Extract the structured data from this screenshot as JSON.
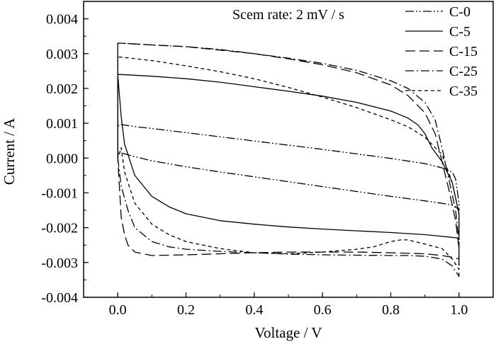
{
  "chart_data": {
    "type": "line",
    "xlabel": "Voltage / V",
    "ylabel": "Current / A",
    "annotation": "Scem rate: 2 mV / s",
    "xlim": [
      -0.1,
      1.1
    ],
    "ylim": [
      -0.004,
      0.0045
    ],
    "x_ticks": [
      0.0,
      0.2,
      0.4,
      0.6,
      0.8,
      1.0
    ],
    "x_tick_labels": [
      "0.0",
      "0.2",
      "0.4",
      "0.6",
      "0.8",
      "1.0"
    ],
    "y_ticks": [
      -0.004,
      -0.003,
      -0.002,
      -0.001,
      0.0,
      0.001,
      0.002,
      0.003,
      0.004
    ],
    "y_tick_labels": [
      "-0.004",
      "-0.003",
      "-0.002",
      "-0.001",
      "0.000",
      "0.001",
      "0.002",
      "0.003",
      "0.004"
    ],
    "grid": false,
    "legend_position": "top-right",
    "series": [
      {
        "name": "C-0",
        "dash": "dashdotdot",
        "x": [
          0.0,
          0.0,
          0.005,
          0.02,
          0.05,
          0.1,
          0.2,
          0.3,
          0.4,
          0.5,
          0.6,
          0.7,
          0.8,
          0.9,
          0.95,
          0.98,
          0.99,
          1.0,
          1.0,
          0.99,
          0.98,
          0.95,
          0.9,
          0.8,
          0.7,
          0.6,
          0.5,
          0.4,
          0.3,
          0.2,
          0.1,
          0.05,
          0.02,
          0.01,
          0.005,
          0.0
        ],
        "y": [
          0.0,
          0.0009,
          0.00096,
          0.00095,
          0.0009,
          0.00085,
          0.00073,
          0.00061,
          0.00049,
          0.00037,
          0.00025,
          0.00012,
          -1e-05,
          -0.00016,
          -0.00028,
          -0.0004,
          -0.0006,
          -0.0013,
          -0.0015,
          -0.0014,
          -0.00135,
          -0.0013,
          -0.00123,
          -0.0011,
          -0.00096,
          -0.00082,
          -0.00068,
          -0.00054,
          -0.0004,
          -0.00025,
          -8e-05,
          4e-05,
          0.00012,
          0.00016,
          0.0002,
          0.0
        ]
      },
      {
        "name": "C-5",
        "dash": "solid",
        "x": [
          0.0,
          0.0,
          0.01,
          0.05,
          0.1,
          0.2,
          0.3,
          0.4,
          0.5,
          0.6,
          0.7,
          0.8,
          0.85,
          0.88,
          0.9,
          0.92,
          0.95,
          0.98,
          1.0,
          1.0,
          0.95,
          0.9,
          0.8,
          0.7,
          0.6,
          0.5,
          0.4,
          0.3,
          0.2,
          0.15,
          0.1,
          0.05,
          0.02,
          0.01,
          0.0
        ],
        "y": [
          0.0,
          0.0024,
          0.0024,
          0.00238,
          0.00235,
          0.00228,
          0.00218,
          0.00205,
          0.00192,
          0.00178,
          0.0016,
          0.00135,
          0.00115,
          0.00095,
          0.0007,
          0.0003,
          -0.0001,
          -0.0007,
          -0.0016,
          -0.0023,
          -0.00225,
          -0.0022,
          -0.00214,
          -0.00209,
          -0.00204,
          -0.00198,
          -0.0019,
          -0.0018,
          -0.0016,
          -0.0014,
          -0.0011,
          -0.0005,
          0.0004,
          0.0012,
          0.0024
        ]
      },
      {
        "name": "C-15",
        "dash": "longdash",
        "x": [
          0.0,
          0.0,
          0.01,
          0.1,
          0.2,
          0.3,
          0.4,
          0.5,
          0.6,
          0.7,
          0.8,
          0.85,
          0.9,
          0.93,
          0.95,
          0.97,
          0.99,
          1.0,
          1.0,
          0.98,
          0.95,
          0.9,
          0.8,
          0.7,
          0.6,
          0.5,
          0.4,
          0.3,
          0.2,
          0.1,
          0.05,
          0.03,
          0.02,
          0.01,
          0.0
        ],
        "y": [
          0.0,
          0.0033,
          0.0033,
          0.00325,
          0.0032,
          0.0031,
          0.003,
          0.00285,
          0.00268,
          0.00245,
          0.0021,
          0.0018,
          0.0013,
          0.0007,
          -0.0001,
          -0.0009,
          -0.0018,
          -0.0026,
          -0.0029,
          -0.00285,
          -0.0028,
          -0.00275,
          -0.00272,
          -0.0027,
          -0.0027,
          -0.0027,
          -0.00272,
          -0.00275,
          -0.00278,
          -0.0028,
          -0.0027,
          -0.0025,
          -0.0022,
          -0.0017,
          0.0
        ]
      },
      {
        "name": "C-25",
        "dash": "dashdot",
        "x": [
          0.0,
          0.0,
          0.01,
          0.1,
          0.2,
          0.3,
          0.4,
          0.5,
          0.6,
          0.7,
          0.8,
          0.85,
          0.9,
          0.93,
          0.95,
          0.97,
          0.99,
          1.0,
          1.0,
          0.98,
          0.95,
          0.9,
          0.85,
          0.8,
          0.7,
          0.6,
          0.5,
          0.4,
          0.3,
          0.2,
          0.15,
          0.1,
          0.05,
          0.03,
          0.01,
          0.0
        ],
        "y": [
          0.0,
          0.0033,
          0.0033,
          0.00325,
          0.0032,
          0.00312,
          0.003,
          0.00287,
          0.00272,
          0.00252,
          0.00222,
          0.002,
          0.0016,
          0.0011,
          0.0003,
          -0.0006,
          -0.0015,
          -0.0024,
          -0.0034,
          -0.0031,
          -0.0029,
          -0.00282,
          -0.0028,
          -0.0028,
          -0.00279,
          -0.00278,
          -0.00276,
          -0.00272,
          -0.00268,
          -0.00262,
          -0.00255,
          -0.0024,
          -0.002,
          -0.0015,
          -0.0008,
          0.0
        ]
      },
      {
        "name": "C-35",
        "dash": "shortdash",
        "x": [
          0.0,
          0.0,
          0.01,
          0.1,
          0.2,
          0.3,
          0.4,
          0.5,
          0.6,
          0.7,
          0.8,
          0.85,
          0.9,
          0.95,
          0.98,
          1.0,
          1.0,
          0.98,
          0.95,
          0.9,
          0.85,
          0.83,
          0.8,
          0.75,
          0.7,
          0.6,
          0.5,
          0.4,
          0.3,
          0.2,
          0.15,
          0.1,
          0.05,
          0.02,
          0.01,
          0.0
        ],
        "y": [
          0.0,
          0.0029,
          0.0029,
          0.0028,
          0.00265,
          0.00248,
          0.00228,
          0.00203,
          0.00175,
          0.00145,
          0.0011,
          0.0009,
          0.0006,
          0.0001,
          -0.0007,
          -0.0016,
          -0.0032,
          -0.0029,
          -0.0026,
          -0.00247,
          -0.00235,
          -0.00235,
          -0.0024,
          -0.00255,
          -0.00262,
          -0.0027,
          -0.00275,
          -0.00272,
          -0.0026,
          -0.0024,
          -0.0022,
          -0.0019,
          -0.0013,
          -0.0004,
          0.0003,
          0.0
        ]
      }
    ]
  }
}
